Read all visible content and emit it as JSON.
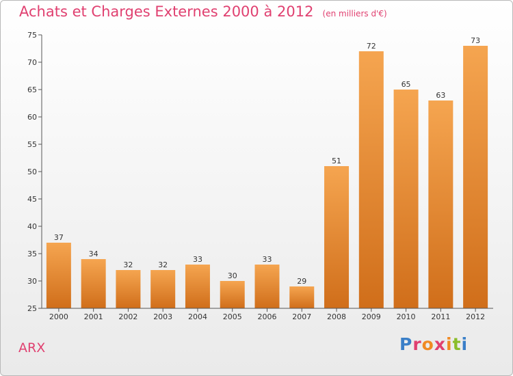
{
  "chart_data": {
    "type": "bar",
    "title": "Achats et Charges Externes 2000 à 2012",
    "subtitle": "(en milliers d'€)",
    "categories": [
      "2000",
      "2001",
      "2002",
      "2003",
      "2004",
      "2005",
      "2006",
      "2007",
      "2008",
      "2009",
      "2010",
      "2011",
      "2012"
    ],
    "values": [
      37,
      34,
      32,
      32,
      33,
      30,
      33,
      29,
      51,
      72,
      65,
      63,
      73
    ],
    "ylim": [
      25,
      75
    ],
    "yticks": [
      25,
      30,
      35,
      40,
      45,
      50,
      55,
      60,
      65,
      70,
      75
    ],
    "grid": false,
    "bar_color_top": "#f5a550",
    "bar_color_bottom": "#d06e1a"
  },
  "footer": {
    "commune": "ARX",
    "brand": "Proxiti",
    "brand_letter_colors": [
      "#3a7fc8",
      "#e04070",
      "#f08a24",
      "#e04070",
      "#f08a24",
      "#8abd2a",
      "#3a7fc8"
    ]
  },
  "colors": {
    "title": "#e04070",
    "axis": "#555555"
  }
}
